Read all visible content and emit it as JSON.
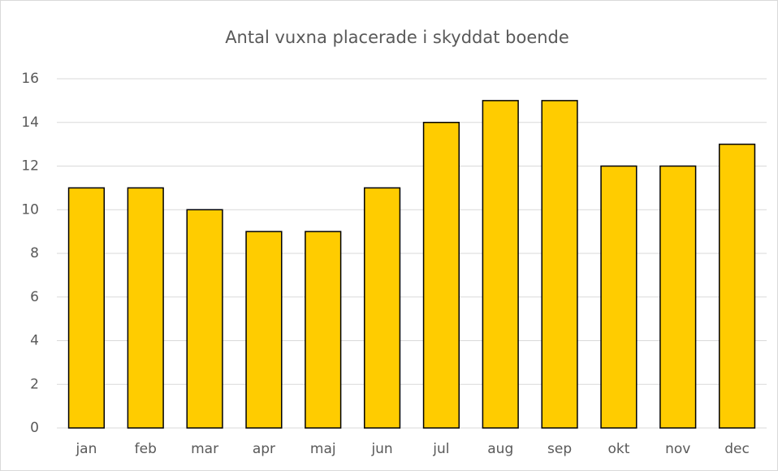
{
  "chart_data": {
    "type": "bar",
    "title": "Antal vuxna placerade i skyddat boende",
    "categories": [
      "jan",
      "feb",
      "mar",
      "apr",
      "maj",
      "jun",
      "jul",
      "aug",
      "sep",
      "okt",
      "nov",
      "dec"
    ],
    "values": [
      11,
      11,
      10,
      9,
      9,
      11,
      14,
      15,
      15,
      12,
      12,
      13
    ],
    "color": "#ffcc00",
    "ylim": [
      0,
      16
    ],
    "yticks": [
      0,
      2,
      4,
      6,
      8,
      10,
      12,
      14,
      16
    ],
    "grid": true
  }
}
